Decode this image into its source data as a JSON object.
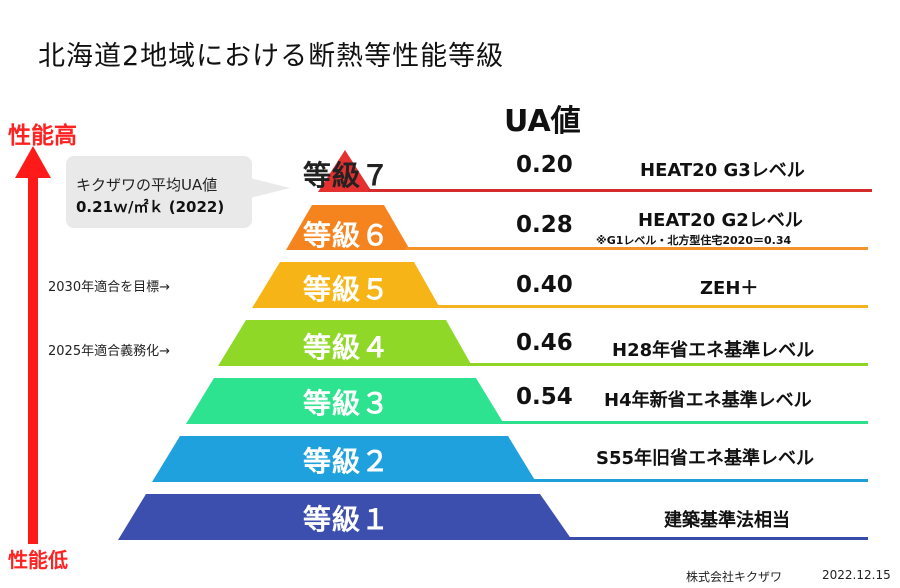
{
  "title": "北海道2地域における断熱等性能等級",
  "ua_header": "UA値",
  "axis": {
    "high_label": "性能高",
    "low_label": "性能低",
    "arrow_color": "#ff1a1a"
  },
  "callout": {
    "label": "キクザワの平均UA値",
    "value": "0.21ｗ/㎡ｋ (2022)"
  },
  "goals": {
    "goal_2030": "2030年適合を目標→",
    "goal_2025": "2025年適合義務化→"
  },
  "grades": [
    {
      "label": "等級７",
      "ua": "0.20",
      "level": "HEAT20 G3レベル",
      "note": "",
      "color": "#e53030",
      "line_color": "#d42b2b"
    },
    {
      "label": "等級６",
      "ua": "0.28",
      "level": "HEAT20 G2レベル",
      "note": "※G1レベル・北方型住宅2020＝0.34",
      "color": "#f5841f",
      "line_color": "#f5922a"
    },
    {
      "label": "等級５",
      "ua": "0.40",
      "level": "ZEH＋",
      "note": "",
      "color": "#f7b416",
      "line_color": "#f5b320"
    },
    {
      "label": "等級４",
      "ua": "0.46",
      "level": "H28年省エネ基準レベル",
      "note": "",
      "color": "#8fd827",
      "line_color": "#8fd427"
    },
    {
      "label": "等級３",
      "ua": "0.54",
      "level": "H4年新省エネ基準レベル",
      "note": "",
      "color": "#2ee38f",
      "line_color": "#2ee08c"
    },
    {
      "label": "等級２",
      "ua": "",
      "level": "S55年旧省エネ基準レベル",
      "note": "",
      "color": "#1ea1dc",
      "line_color": "#1e9fd8"
    },
    {
      "label": "等級１",
      "ua": "",
      "level": "建築基準法相当",
      "note": "",
      "color": "#3d4fae",
      "line_color": "#3a4aa8"
    }
  ],
  "footer": {
    "company": "株式会社キクザワ",
    "date": "2022.12.15"
  }
}
